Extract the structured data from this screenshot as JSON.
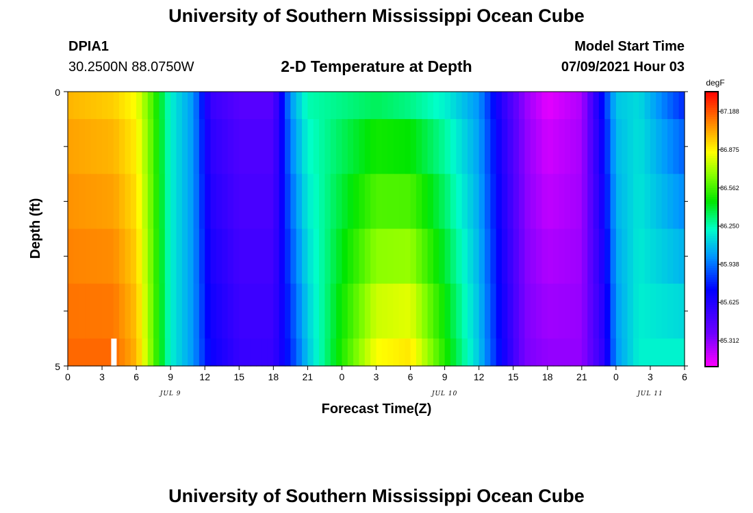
{
  "header": {
    "title": "University of Southern Mississippi Ocean Cube",
    "station": "DPIA1",
    "coords": "30.2500N  88.0750W",
    "plot_title": "2-D Temperature at Depth",
    "start_label": "Model Start Time",
    "start_value": "07/09/2021 Hour 03"
  },
  "footer": {
    "title": "University of Southern Mississippi Ocean Cube"
  },
  "chart_data": {
    "type": "heatmap",
    "title": "2-D Temperature at Depth",
    "xlabel": "Forecast Time(Z)",
    "ylabel": "Depth (ft)",
    "x_tick_labels": [
      "0",
      "3",
      "6",
      "9",
      "12",
      "15",
      "18",
      "21",
      "0",
      "3",
      "6",
      "9",
      "12",
      "15",
      "18",
      "21",
      "0",
      "3",
      "6"
    ],
    "date_labels": [
      "JUL 9",
      "JUL 10",
      "JUL 11"
    ],
    "y_tick_labels": [
      "0",
      "5"
    ],
    "ylim": [
      0,
      5
    ],
    "x_hours_range": [
      0,
      54
    ],
    "colorbar": {
      "unit": "degF",
      "tick_labels": [
        "87.188",
        "86.875",
        "86.562",
        "86.250",
        "85.938",
        "85.625",
        "85.312"
      ],
      "tick_values": [
        87.188,
        86.875,
        86.562,
        86.25,
        85.938,
        85.625,
        85.312
      ],
      "range": [
        85.1,
        87.35
      ]
    },
    "depth_rows": [
      "0-0.5",
      "0.5-1.5",
      "1.5-2.5",
      "2.5-3.5",
      "3.5-4.5",
      "4.5-5"
    ],
    "temperature_profile_by_hour": {
      "hours": [
        0,
        4,
        6,
        7.5,
        9,
        11,
        12.5,
        15,
        18,
        19.5,
        21,
        24,
        27,
        30,
        33,
        36,
        38,
        40,
        42,
        45,
        47,
        48,
        50,
        54
      ],
      "surface": [
        87.0,
        86.95,
        86.85,
        86.55,
        86.2,
        86.0,
        85.55,
        85.45,
        85.45,
        86.0,
        86.25,
        86.3,
        86.35,
        86.3,
        86.2,
        86.0,
        85.6,
        85.3,
        85.15,
        85.25,
        85.8,
        86.1,
        86.15,
        85.8
      ],
      "deep": [
        87.15,
        87.15,
        87.0,
        86.6,
        86.2,
        86.0,
        85.7,
        85.55,
        85.55,
        85.8,
        86.1,
        86.5,
        86.85,
        86.9,
        86.5,
        86.1,
        85.7,
        85.35,
        85.3,
        85.3,
        85.6,
        86.0,
        86.2,
        86.2
      ]
    }
  }
}
